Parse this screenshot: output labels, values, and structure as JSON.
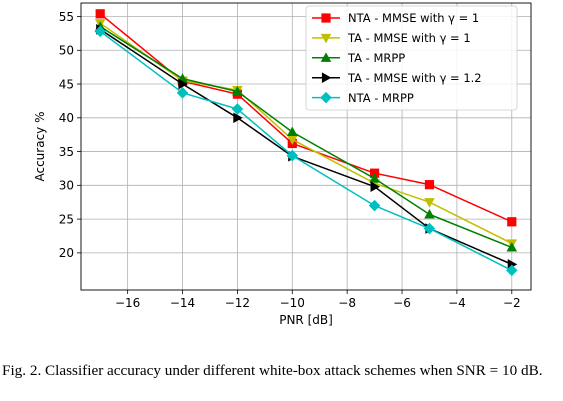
{
  "chart_data": {
    "type": "line",
    "xlabel": "PNR [dB]",
    "ylabel": "Accuracy %",
    "xlim": [
      -17.7,
      -1.3
    ],
    "ylim": [
      14.5,
      57
    ],
    "xticks": [
      -16,
      -14,
      -12,
      -10,
      -8,
      -6,
      -4,
      -2
    ],
    "xtick_labels": [
      "−16",
      "−14",
      "−12",
      "−10",
      "−8",
      "−6",
      "−4",
      "−2"
    ],
    "yticks": [
      20,
      25,
      30,
      35,
      40,
      45,
      50,
      55
    ],
    "ytick_labels": [
      "20",
      "25",
      "30",
      "35",
      "40",
      "45",
      "50",
      "55"
    ],
    "grid": true,
    "legend_position": "top-right",
    "x": [
      -17,
      -14,
      -12,
      -10,
      -7,
      -5,
      -2
    ],
    "series": [
      {
        "name": "NTA - MMSE with γ = 1",
        "color": "#ff0000",
        "marker": "square",
        "values": [
          55.4,
          45.4,
          43.5,
          36.2,
          31.8,
          30.1,
          24.6
        ]
      },
      {
        "name": "TA - MMSE with γ = 1",
        "color": "#bfbf00",
        "marker": "triangle-down",
        "values": [
          54.0,
          45.5,
          44.1,
          36.8,
          30.3,
          27.5,
          21.4
        ]
      },
      {
        "name": "TA - MRPP",
        "color": "#008000",
        "marker": "triangle-up",
        "values": [
          53.5,
          45.8,
          43.9,
          37.9,
          31.0,
          25.7,
          20.8
        ]
      },
      {
        "name": "TA - MMSE with γ = 1.2",
        "color": "#000000",
        "marker": "triangle-right",
        "values": [
          53.1,
          45.0,
          40.0,
          34.3,
          29.8,
          23.6,
          18.3
        ]
      },
      {
        "name": "NTA - MRPP",
        "color": "#00bfbf",
        "marker": "diamond",
        "values": [
          52.8,
          43.7,
          41.3,
          34.4,
          27.0,
          23.6,
          17.4
        ]
      }
    ]
  },
  "caption": "Fig. 2.  Classifier accuracy under different white-box attack schemes when SNR = 10 dB."
}
